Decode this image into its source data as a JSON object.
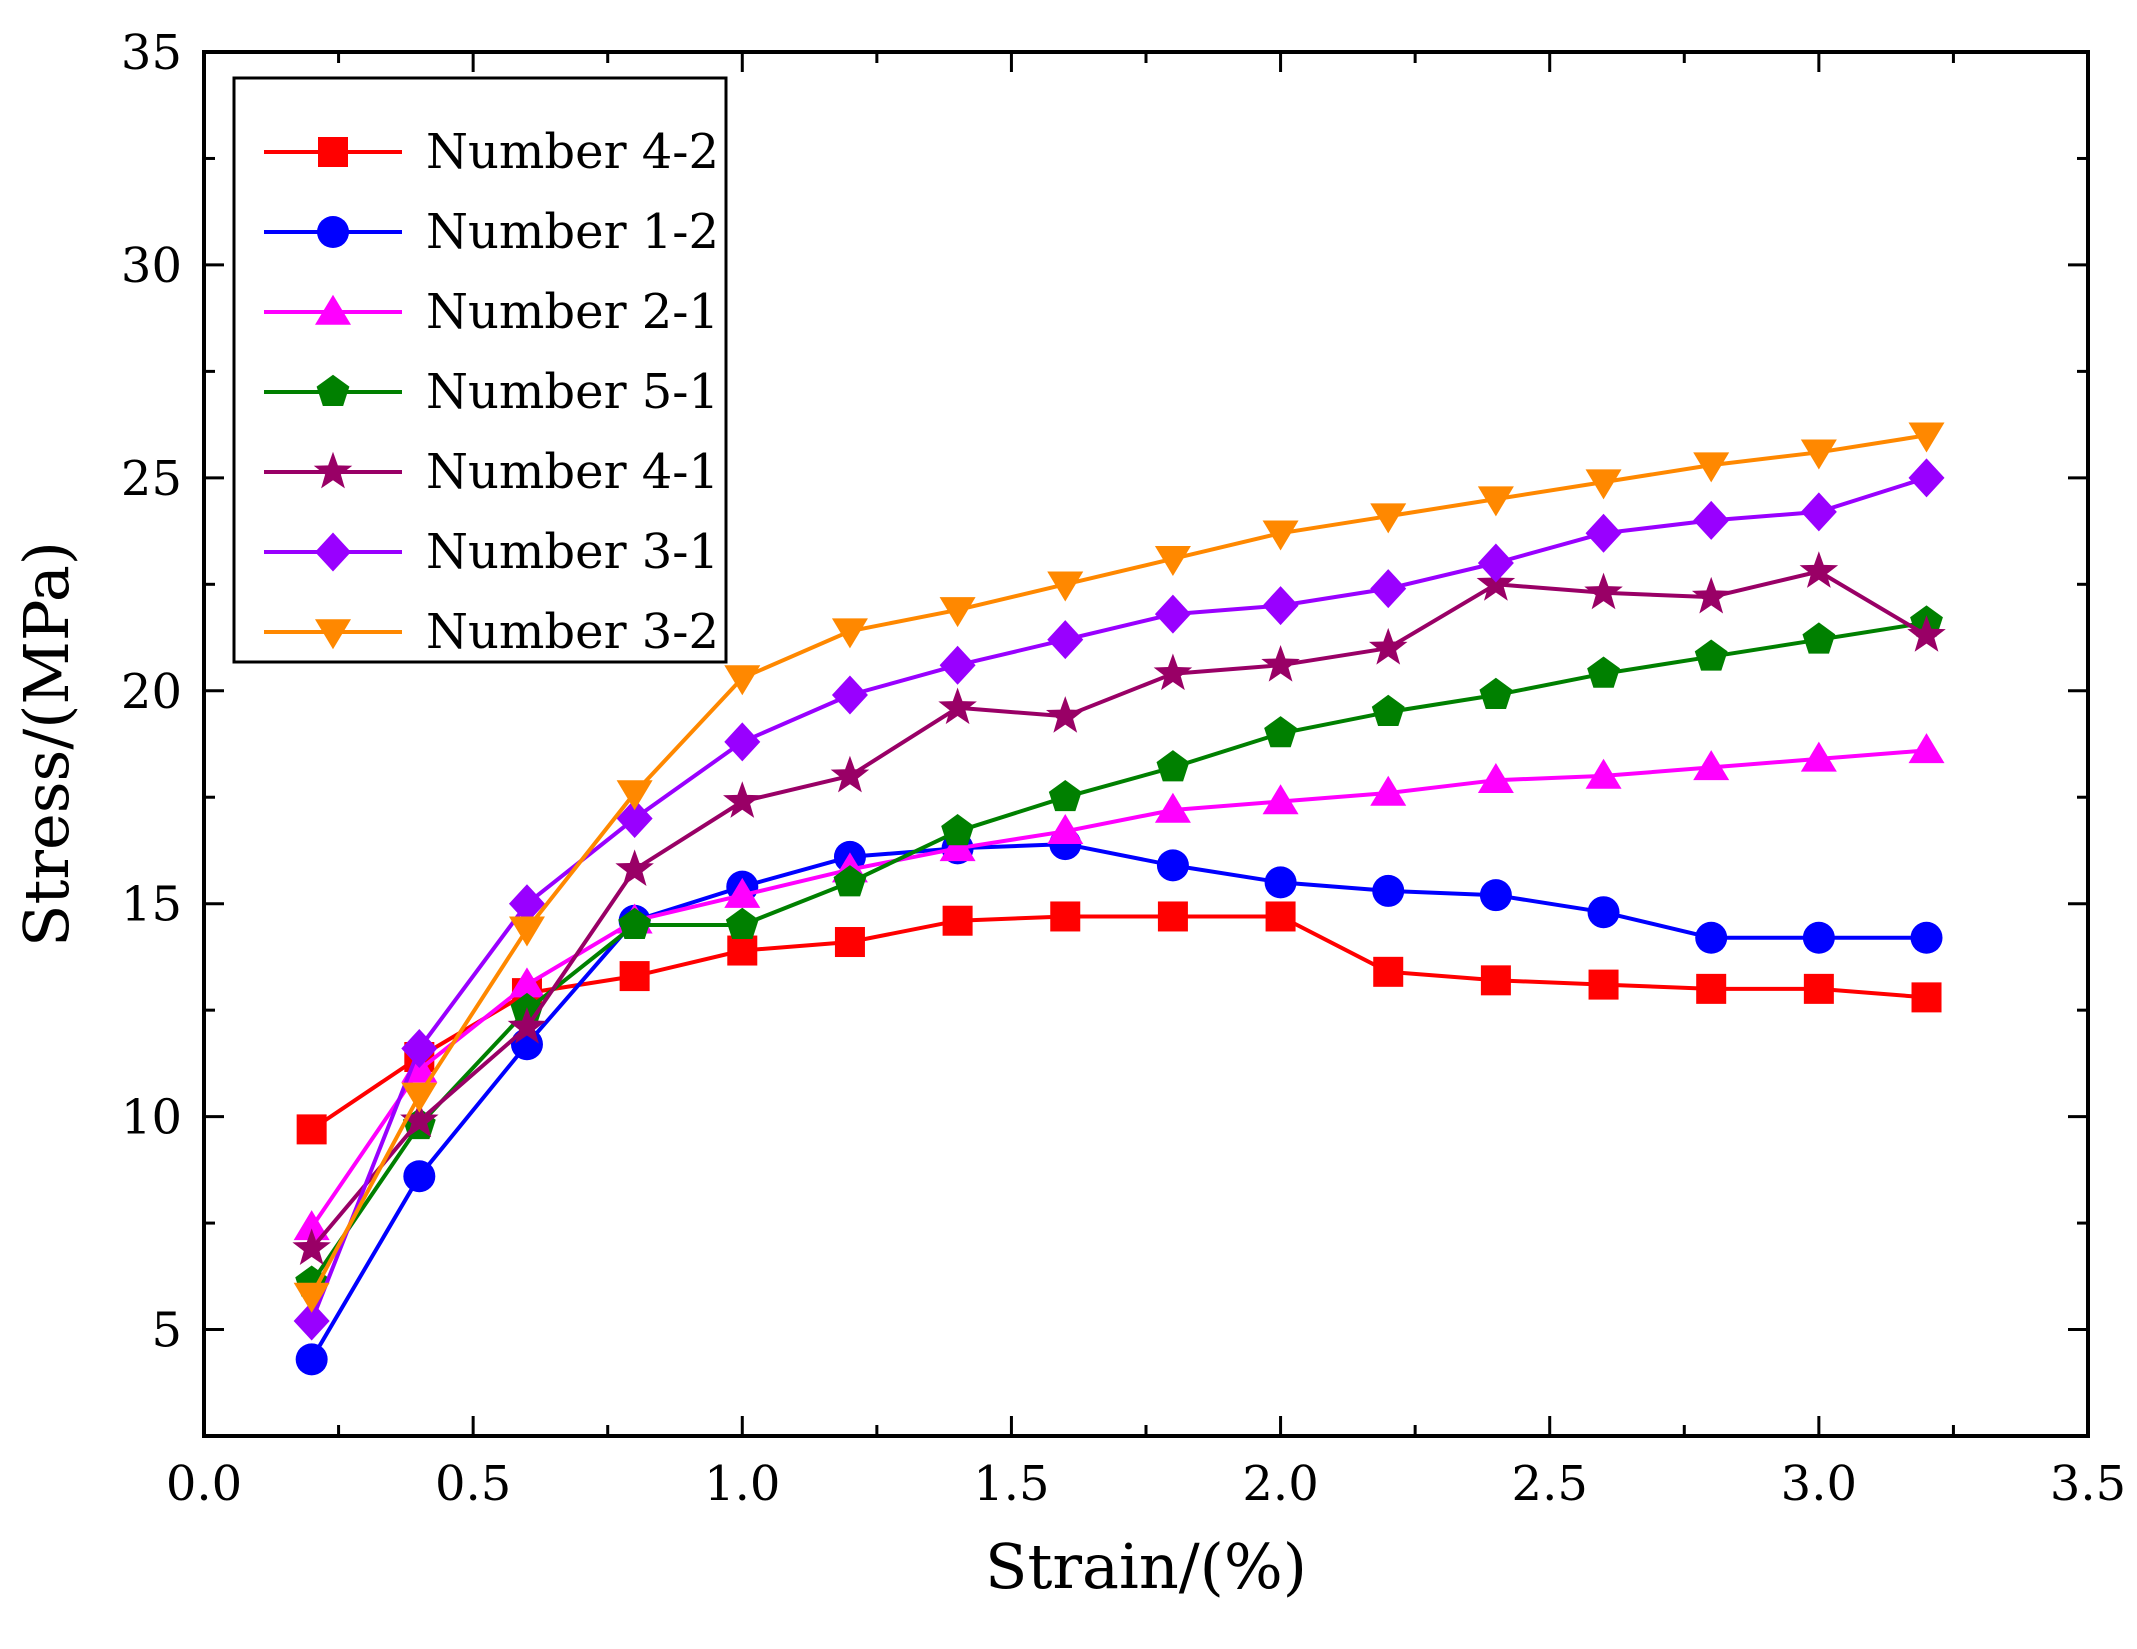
{
  "chart_data": {
    "type": "line",
    "title": "",
    "xlabel": "Strain/(%)",
    "ylabel": "Stress/(MPa)",
    "xlim": [
      0.0,
      3.5
    ],
    "ylim": [
      2.5,
      35
    ],
    "xticks": [
      0.0,
      0.5,
      1.0,
      1.5,
      2.0,
      2.5,
      3.0,
      3.5
    ],
    "xtick_labels": [
      "0.0",
      "0.5",
      "1.0",
      "1.5",
      "2.0",
      "2.5",
      "3.0",
      "3.5"
    ],
    "yticks": [
      5,
      10,
      15,
      20,
      25,
      30,
      35
    ],
    "ytick_labels": [
      "5",
      "10",
      "15",
      "20",
      "25",
      "30",
      "35"
    ],
    "grid": false,
    "legend_position": "top-left",
    "x": [
      0.2,
      0.4,
      0.6,
      0.8,
      1.0,
      1.2,
      1.4,
      1.6,
      1.8,
      2.0,
      2.2,
      2.4,
      2.6,
      2.8,
      3.0,
      3.2
    ],
    "series": [
      {
        "name": "Number 4-2",
        "color": "#ff0000",
        "marker": "square",
        "values": [
          9.7,
          11.4,
          12.9,
          13.3,
          13.9,
          14.1,
          14.6,
          14.7,
          14.7,
          14.7,
          13.4,
          13.2,
          13.1,
          13.0,
          13.0,
          12.8
        ]
      },
      {
        "name": "Number 1-2",
        "color": "#0000ff",
        "marker": "circle",
        "values": [
          4.3,
          8.6,
          11.7,
          14.6,
          15.4,
          16.1,
          16.3,
          16.4,
          15.9,
          15.5,
          15.3,
          15.2,
          14.8,
          14.2,
          14.2,
          14.2
        ]
      },
      {
        "name": "Number 2-1",
        "color": "#ff00ff",
        "marker": "triangle-up",
        "values": [
          7.4,
          11.1,
          13.1,
          14.6,
          15.2,
          15.8,
          16.3,
          16.7,
          17.2,
          17.4,
          17.6,
          17.9,
          18.0,
          18.2,
          18.4,
          18.6
        ]
      },
      {
        "name": "Number 5-1",
        "color": "#008000",
        "marker": "pentagon",
        "values": [
          6.1,
          9.8,
          12.5,
          14.5,
          14.5,
          15.5,
          16.7,
          17.5,
          18.2,
          19.0,
          19.5,
          19.9,
          20.4,
          20.8,
          21.2,
          21.6
        ]
      },
      {
        "name": "Number 4-1",
        "color": "#990066",
        "marker": "star",
        "values": [
          6.9,
          9.9,
          12.1,
          15.8,
          17.4,
          18.0,
          19.6,
          19.4,
          20.4,
          20.6,
          21.0,
          22.5,
          22.3,
          22.2,
          22.8,
          21.3
        ]
      },
      {
        "name": "Number 3-1",
        "color": "#9900ff",
        "marker": "diamond",
        "values": [
          5.2,
          11.6,
          15.0,
          17.0,
          18.8,
          19.9,
          20.6,
          21.2,
          21.8,
          22.0,
          22.4,
          23.0,
          23.7,
          24.0,
          24.2,
          25.0
        ]
      },
      {
        "name": "Number 3-2",
        "color": "#ff8800",
        "marker": "triangle-down",
        "values": [
          5.8,
          10.5,
          14.4,
          17.6,
          20.3,
          21.4,
          21.9,
          22.5,
          23.1,
          23.7,
          24.1,
          24.5,
          24.9,
          25.3,
          25.6,
          26.0
        ]
      }
    ]
  }
}
